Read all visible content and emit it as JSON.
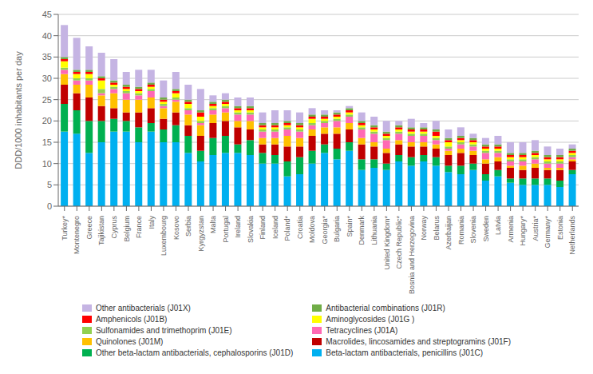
{
  "chart_data": {
    "type": "bar",
    "stacked": true,
    "ylabel": "DDD/1000 inhabitants per day",
    "categories": [
      "Turkey*",
      "Montenegro",
      "Greece",
      "Tajikistan",
      "Cyprus",
      "Belgium",
      "France",
      "Italy",
      "Luxembourg",
      "Kosovo",
      "Serbia",
      "Kyrgyzstan",
      "Malta",
      "Portugal",
      "Ireland",
      "Slovakia",
      "Finland",
      "Iceland",
      "Poland*",
      "Croatia",
      "Moldova",
      "Georgia*",
      "Bulgaria",
      "Spain*",
      "Denmark",
      "Lithuania",
      "United Kingdom*",
      "Czech Republic*",
      "Bosnia and Herzegovina",
      "Norway",
      "Belarus",
      "Azerbaijan",
      "Romania",
      "Slovenia",
      "Sweden",
      "Latvia",
      "Armenia",
      "Hungary*",
      "Austria*",
      "Germany*",
      "Estonia",
      "Netherlands"
    ],
    "series": [
      {
        "name": "Beta-lactam antibacterials, penicillins (J01C)",
        "color": "#00B0F0",
        "values": [
          17.5,
          17.0,
          12.5,
          15.0,
          17.5,
          17.5,
          15.0,
          17.5,
          15.0,
          15.0,
          12.5,
          10.5,
          12.0,
          12.5,
          12.5,
          12.0,
          10.0,
          10.0,
          7.0,
          7.5,
          10.0,
          12.5,
          11.0,
          13.0,
          8.5,
          9.0,
          8.5,
          10.5,
          9.5,
          10.5,
          9.5,
          8.0,
          7.5,
          8.5,
          6.0,
          7.0,
          5.5,
          5.0,
          5.0,
          5.0,
          4.5,
          7.5
        ]
      },
      {
        "name": "Other beta-lactam antibacterials, cephalosporins (J01D)",
        "color": "#00B050",
        "values": [
          6.5,
          5.5,
          7.5,
          5.0,
          3.0,
          2.5,
          3.5,
          2.0,
          3.0,
          4.0,
          4.0,
          2.5,
          4.0,
          4.0,
          2.0,
          3.5,
          2.5,
          2.0,
          3.5,
          4.0,
          3.0,
          2.0,
          2.5,
          2.0,
          2.5,
          2.0,
          1.5,
          1.5,
          2.0,
          1.5,
          2.0,
          1.5,
          2.0,
          1.5,
          1.5,
          1.5,
          1.0,
          1.5,
          1.5,
          1.5,
          1.5,
          1.0
        ]
      },
      {
        "name": "Macrolides, lincosamides and streptogramins (J01F)",
        "color": "#C00000",
        "values": [
          4.5,
          4.0,
          5.5,
          3.5,
          2.5,
          2.0,
          3.5,
          3.5,
          2.5,
          3.0,
          2.5,
          3.5,
          3.5,
          3.5,
          4.0,
          2.5,
          2.0,
          2.5,
          3.5,
          2.5,
          3.5,
          2.5,
          3.5,
          3.0,
          3.5,
          3.0,
          2.5,
          2.5,
          2.5,
          2.0,
          2.0,
          2.5,
          3.0,
          2.0,
          2.5,
          2.0,
          2.5,
          2.0,
          2.5,
          2.0,
          2.5,
          2.0
        ]
      },
      {
        "name": "Quinolones (J01M)",
        "color": "#FFC000",
        "values": [
          2.5,
          2.0,
          3.0,
          2.5,
          3.5,
          3.0,
          3.0,
          2.5,
          2.5,
          2.5,
          2.5,
          2.5,
          2.0,
          2.0,
          1.5,
          2.0,
          1.5,
          1.5,
          2.5,
          2.0,
          1.5,
          1.5,
          1.5,
          1.5,
          1.5,
          1.0,
          1.0,
          1.0,
          1.0,
          1.0,
          1.0,
          1.0,
          1.0,
          1.0,
          1.0,
          1.0,
          0.5,
          1.0,
          1.0,
          0.5,
          0.5,
          0.5
        ]
      },
      {
        "name": "Tetracyclines (J01A)",
        "color": "#FF69B4",
        "values": [
          1.0,
          1.0,
          1.0,
          0.5,
          1.0,
          1.5,
          1.0,
          1.5,
          0.5,
          0.5,
          1.0,
          0.5,
          1.0,
          1.0,
          1.5,
          1.5,
          1.5,
          1.5,
          1.5,
          1.5,
          1.0,
          1.0,
          1.5,
          1.5,
          2.0,
          2.0,
          2.0,
          1.5,
          1.5,
          1.5,
          1.0,
          0.5,
          1.0,
          1.0,
          1.5,
          1.0,
          1.0,
          1.0,
          1.0,
          1.0,
          1.0,
          0.5
        ]
      },
      {
        "name": "Sulfonamides and trimethoprim (J01E)",
        "color": "#92D050",
        "values": [
          0.5,
          0.5,
          0.5,
          1.0,
          0.5,
          0.5,
          0.5,
          0.5,
          0.5,
          0.5,
          0.5,
          0.5,
          0.5,
          0.5,
          0.5,
          0.5,
          0.5,
          0.5,
          0.5,
          0.5,
          0.5,
          0.5,
          0.5,
          0.5,
          0.5,
          0.5,
          0.5,
          0.5,
          0.5,
          0.5,
          0.5,
          0.5,
          0.5,
          0.5,
          0.5,
          0.5,
          0.5,
          0.5,
          0.5,
          0.5,
          0.5,
          0.5
        ]
      },
      {
        "name": "Aminoglycosides (J01G )",
        "color": "#FFFF00",
        "values": [
          1.5,
          1.0,
          1.0,
          2.0,
          0.5,
          0.5,
          0.5,
          0.5,
          0.5,
          1.0,
          1.0,
          1.0,
          0.5,
          0.5,
          0.5,
          0.5,
          0.5,
          0.5,
          0.5,
          0.5,
          1.0,
          0.5,
          0.5,
          0.5,
          0.5,
          0.5,
          0.5,
          0.5,
          0.5,
          0.5,
          0.5,
          1.0,
          0.5,
          0.5,
          0.5,
          0.5,
          0.5,
          0.5,
          0.5,
          0.5,
          0.5,
          0.5
        ]
      },
      {
        "name": "Amphenicols (J01B)",
        "color": "#FF0000",
        "values": [
          0.5,
          0.5,
          0.5,
          0.5,
          0.5,
          0.5,
          0.5,
          0.5,
          0.5,
          0.5,
          0.5,
          1.0,
          0.5,
          0.5,
          0.5,
          0.5,
          0.5,
          0.5,
          0.5,
          0.5,
          0.5,
          0.5,
          0.5,
          0.5,
          0.5,
          0.5,
          0.5,
          0.5,
          0.5,
          0.5,
          1.0,
          0.5,
          0.5,
          0.5,
          0.5,
          0.5,
          0.5,
          0.5,
          0.5,
          0.5,
          0.5,
          0.5
        ]
      },
      {
        "name": "Antibacterial combinations (J01R)",
        "color": "#70AD47",
        "values": [
          0.5,
          0.5,
          0.5,
          0.5,
          0.5,
          0.5,
          0.5,
          0.5,
          0.5,
          0.5,
          0.5,
          0.5,
          0.5,
          0.5,
          0.5,
          0.5,
          0.5,
          0.5,
          0.5,
          0.5,
          0.5,
          0.5,
          0.5,
          0.5,
          0.5,
          0.5,
          0.5,
          0.5,
          0.5,
          0.5,
          0.5,
          0.5,
          0.5,
          0.5,
          0.5,
          0.5,
          0.5,
          0.5,
          0.5,
          0.5,
          0.5,
          0.5
        ]
      },
      {
        "name": "Other antibacterials (J01X)",
        "color": "#C5B4E3",
        "values": [
          7.5,
          7.5,
          5.5,
          5.5,
          5.0,
          3.0,
          4.0,
          3.0,
          4.0,
          4.0,
          3.5,
          5.0,
          1.5,
          1.5,
          2.0,
          2.0,
          2.5,
          3.0,
          2.5,
          2.5,
          1.5,
          1.0,
          0.5,
          0.5,
          2.0,
          2.0,
          2.5,
          1.0,
          2.0,
          1.0,
          2.0,
          2.0,
          2.0,
          1.0,
          1.5,
          2.0,
          2.5,
          2.5,
          2.5,
          2.0,
          1.5,
          1.0
        ]
      }
    ],
    "ylim": [
      0,
      45
    ],
    "yticks": [
      0,
      5,
      10,
      15,
      20,
      25,
      30,
      35,
      40,
      45
    ],
    "grid": true,
    "legend": "bottom"
  }
}
